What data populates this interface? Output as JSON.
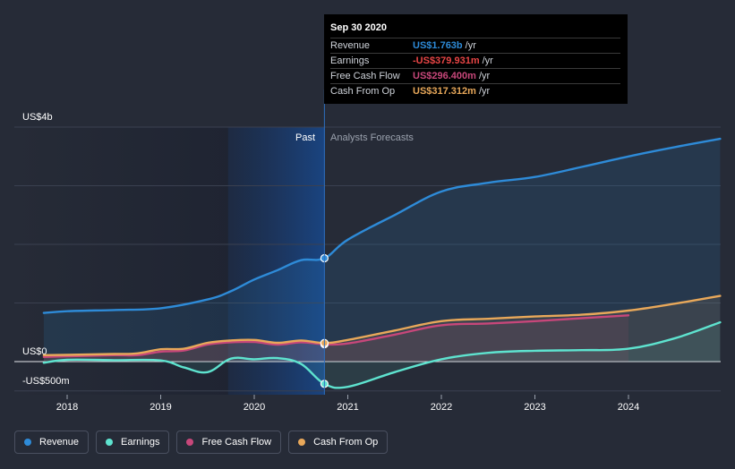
{
  "colors": {
    "background": "#262b37",
    "revenue": "#2e8bd8",
    "earnings": "#5ee3cf",
    "fcf": "#c7477a",
    "cfo": "#e8a85a"
  },
  "tooltip": {
    "date": "Sep 30 2020",
    "rows": [
      {
        "label": "Revenue",
        "value": "US$1.763b",
        "unit": "/yr",
        "color": "#2e8bd8"
      },
      {
        "label": "Earnings",
        "value": "-US$379.931m",
        "unit": "/yr",
        "color": "#e84545"
      },
      {
        "label": "Free Cash Flow",
        "value": "US$296.400m",
        "unit": "/yr",
        "color": "#c7477a"
      },
      {
        "label": "Cash From Op",
        "value": "US$317.312m",
        "unit": "/yr",
        "color": "#e8a85a"
      }
    ]
  },
  "labels": {
    "past": "Past",
    "forecast": "Analysts Forecasts"
  },
  "legend": [
    {
      "label": "Revenue",
      "color": "#2e8bd8"
    },
    {
      "label": "Earnings",
      "color": "#5ee3cf"
    },
    {
      "label": "Free Cash Flow",
      "color": "#c7477a"
    },
    {
      "label": "Cash From Op",
      "color": "#e8a85a"
    }
  ],
  "chart_data": {
    "type": "line",
    "title": "",
    "xlabel": "",
    "ylabel": "",
    "x_ticks": [
      "2018",
      "2019",
      "2020",
      "2021",
      "2022",
      "2023",
      "2024"
    ],
    "y_ticks": [
      {
        "value": 4000,
        "label": "US$4b"
      },
      {
        "value": 0,
        "label": "US$0"
      },
      {
        "value": -500,
        "label": "-US$500m"
      }
    ],
    "ylim": [
      -500,
      4000
    ],
    "past_until": 2020.75,
    "series": [
      {
        "name": "Revenue",
        "color": "#2e8bd8",
        "points": [
          [
            2017.75,
            830
          ],
          [
            2018.0,
            860
          ],
          [
            2018.5,
            880
          ],
          [
            2019.0,
            910
          ],
          [
            2019.5,
            1060
          ],
          [
            2019.75,
            1200
          ],
          [
            2020.0,
            1400
          ],
          [
            2020.25,
            1560
          ],
          [
            2020.5,
            1730
          ],
          [
            2020.75,
            1763
          ],
          [
            2021.0,
            2080
          ],
          [
            2021.5,
            2500
          ],
          [
            2022.0,
            2900
          ],
          [
            2022.5,
            3050
          ],
          [
            2023.0,
            3150
          ],
          [
            2023.5,
            3320
          ],
          [
            2024.0,
            3500
          ],
          [
            2024.5,
            3660
          ],
          [
            2024.98,
            3800
          ]
        ]
      },
      {
        "name": "Earnings",
        "color": "#5ee3cf",
        "points": [
          [
            2017.75,
            -20
          ],
          [
            2018.0,
            30
          ],
          [
            2018.5,
            25
          ],
          [
            2019.0,
            20
          ],
          [
            2019.25,
            -100
          ],
          [
            2019.5,
            -180
          ],
          [
            2019.75,
            50
          ],
          [
            2020.0,
            40
          ],
          [
            2020.25,
            60
          ],
          [
            2020.5,
            -40
          ],
          [
            2020.75,
            -379.931
          ],
          [
            2021.0,
            -430
          ],
          [
            2021.5,
            -180
          ],
          [
            2022.0,
            40
          ],
          [
            2022.5,
            150
          ],
          [
            2023.0,
            185
          ],
          [
            2023.5,
            195
          ],
          [
            2024.0,
            220
          ],
          [
            2024.5,
            400
          ],
          [
            2024.98,
            670
          ]
        ]
      },
      {
        "name": "Free Cash Flow",
        "color": "#c7477a",
        "points": [
          [
            2017.75,
            80
          ],
          [
            2018.0,
            90
          ],
          [
            2018.5,
            110
          ],
          [
            2018.75,
            110
          ],
          [
            2019.0,
            170
          ],
          [
            2019.25,
            190
          ],
          [
            2019.5,
            290
          ],
          [
            2019.75,
            330
          ],
          [
            2020.0,
            335
          ],
          [
            2020.25,
            290
          ],
          [
            2020.5,
            330
          ],
          [
            2020.75,
            296.4
          ],
          [
            2021.0,
            310
          ],
          [
            2021.5,
            460
          ],
          [
            2022.0,
            620
          ],
          [
            2022.5,
            650
          ],
          [
            2023.0,
            690
          ],
          [
            2023.5,
            740
          ],
          [
            2024.0,
            790
          ]
        ]
      },
      {
        "name": "Cash From Op",
        "color": "#e8a85a",
        "points": [
          [
            2017.75,
            110
          ],
          [
            2018.0,
            115
          ],
          [
            2018.5,
            130
          ],
          [
            2018.75,
            140
          ],
          [
            2019.0,
            210
          ],
          [
            2019.25,
            220
          ],
          [
            2019.5,
            320
          ],
          [
            2019.75,
            360
          ],
          [
            2020.0,
            370
          ],
          [
            2020.25,
            320
          ],
          [
            2020.5,
            360
          ],
          [
            2020.75,
            317.312
          ],
          [
            2021.0,
            370
          ],
          [
            2021.5,
            530
          ],
          [
            2022.0,
            690
          ],
          [
            2022.5,
            730
          ],
          [
            2023.0,
            770
          ],
          [
            2023.5,
            800
          ],
          [
            2024.0,
            870
          ],
          [
            2024.5,
            990
          ],
          [
            2024.98,
            1120
          ]
        ]
      }
    ]
  }
}
